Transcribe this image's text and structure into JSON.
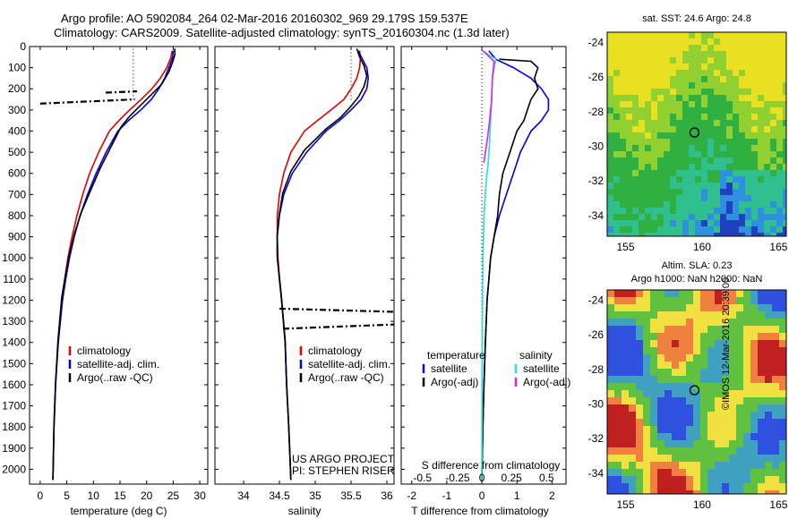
{
  "header": {
    "line1": "Argo profile: AO 5902084_264 02-Mar-2016 20160302_969 29.179S 159.537E",
    "line2": "Climatology: CARS2009. Satellite-adjusted climatology: synTS_20160304.nc (1.3d later)"
  },
  "colors": {
    "climatology": "#e00000",
    "satellite": "#0000e0",
    "argo": "#000000",
    "sat_salinity": "#20e0e0",
    "argo_salinity": "#e020e0"
  },
  "chart_data": [
    {
      "type": "line",
      "xlabel": "temperature (deg C)",
      "ylabel": "",
      "xlim": [
        -2,
        31.5
      ],
      "ylim": [
        2070,
        0
      ],
      "xticks": [
        0,
        5,
        10,
        15,
        20,
        25,
        30
      ],
      "yticks": [
        0,
        100,
        200,
        300,
        400,
        500,
        600,
        700,
        800,
        900,
        1000,
        1100,
        1200,
        1300,
        1400,
        1500,
        1600,
        1700,
        1800,
        1900,
        2000
      ],
      "legend": [
        "climatology",
        "satellite-adj. clim.",
        "Argo(..raw -QC)"
      ],
      "legend_position": "lower-center",
      "series": [
        {
          "name": "climatology",
          "x": [
            24.8,
            24.6,
            23.8,
            22.6,
            21.0,
            19.0,
            16.8,
            14.8,
            13.0,
            11.0,
            9.3,
            8.0,
            6.9,
            6.0,
            5.2,
            4.6,
            4.0,
            3.3,
            2.9,
            2.6,
            2.4
          ],
          "y": [
            20,
            50,
            100,
            150,
            200,
            250,
            300,
            350,
            400,
            500,
            600,
            700,
            800,
            900,
            1000,
            1100,
            1200,
            1400,
            1600,
            1800,
            2050
          ]
        },
        {
          "name": "satellite-adj. clim.",
          "x": [
            25.0,
            24.9,
            24.2,
            23.4,
            22.3,
            20.9,
            18.9,
            16.6,
            14.6,
            12.4,
            10.5,
            8.9,
            7.5,
            6.4,
            5.5,
            4.8,
            4.2,
            3.4,
            2.9,
            2.6,
            2.4
          ],
          "y": [
            20,
            50,
            100,
            150,
            200,
            250,
            300,
            350,
            400,
            500,
            600,
            700,
            800,
            900,
            1000,
            1100,
            1200,
            1400,
            1600,
            1800,
            2050
          ]
        },
        {
          "name": "Argo(..raw -QC)",
          "x": [
            25.3,
            25.3,
            24.8,
            24.2,
            22.8,
            20.8,
            18.8,
            16.8,
            15.2,
            13.2,
            11.2,
            9.5,
            7.8,
            6.5,
            5.5,
            4.8,
            4.1,
            3.4,
            2.9,
            2.6,
            2.4
          ],
          "y": [
            10,
            40,
            80,
            120,
            180,
            230,
            280,
            330,
            380,
            480,
            580,
            680,
            780,
            880,
            980,
            1080,
            1180,
            1380,
            1580,
            1780,
            2050
          ]
        }
      ],
      "markers": [
        {
          "name": "Argo(..raw -QC)",
          "x": [
            0,
            17.8
          ],
          "y": [
            270,
            250
          ]
        },
        {
          "name": "Argo(..raw -QC)",
          "x": [
            12.3,
            18.2
          ],
          "y": [
            218,
            212
          ]
        }
      ],
      "dotted_reference": {
        "x": [
          17.5,
          17.5
        ],
        "y": [
          10,
          260
        ]
      }
    },
    {
      "type": "line",
      "xlabel": "salinity",
      "xlim": [
        33.6,
        36.1
      ],
      "ylim": [
        2070,
        0
      ],
      "xticks": [
        34,
        34.5,
        35,
        35.5,
        36
      ],
      "legend": [
        "climatology",
        "satellite-adj. clim.",
        "Argo(..raw -QC)"
      ],
      "legend_position": "lower-right",
      "series": [
        {
          "name": "climatology",
          "x": [
            35.62,
            35.63,
            35.62,
            35.58,
            35.5,
            35.4,
            35.22,
            35.03,
            34.85,
            34.66,
            34.56,
            34.5,
            34.47,
            34.47,
            34.48,
            34.5,
            34.53,
            34.58,
            34.6,
            34.63,
            34.66
          ],
          "y": [
            20,
            60,
            100,
            150,
            200,
            250,
            300,
            350,
            400,
            500,
            600,
            700,
            800,
            900,
            1000,
            1100,
            1200,
            1400,
            1600,
            1800,
            2050
          ]
        },
        {
          "name": "satellite-adj. clim.",
          "x": [
            35.6,
            35.66,
            35.72,
            35.74,
            35.72,
            35.64,
            35.5,
            35.34,
            35.15,
            34.88,
            34.68,
            34.56,
            34.5,
            34.47,
            34.47,
            34.5,
            34.53,
            34.58,
            34.6,
            34.63,
            34.66
          ],
          "y": [
            20,
            60,
            100,
            150,
            200,
            250,
            300,
            350,
            400,
            500,
            600,
            700,
            800,
            900,
            1000,
            1100,
            1200,
            1400,
            1600,
            1800,
            2050
          ]
        },
        {
          "name": "Argo(..raw -QC)",
          "x": [
            35.58,
            35.62,
            35.68,
            35.72,
            35.68,
            35.6,
            35.48,
            35.34,
            35.15,
            34.85,
            34.66,
            34.55,
            34.5,
            34.47,
            34.47,
            34.5,
            34.53,
            34.58,
            34.6,
            34.63,
            34.66
          ],
          "y": [
            10,
            50,
            90,
            140,
            190,
            240,
            290,
            340,
            390,
            490,
            590,
            690,
            790,
            890,
            990,
            1090,
            1190,
            1390,
            1590,
            1790,
            2050
          ]
        }
      ],
      "markers": [
        {
          "name": "Argo(..raw -QC)",
          "x": [
            34.5,
            36.1
          ],
          "y": [
            1240,
            1255
          ]
        },
        {
          "name": "Argo(..raw -QC)",
          "x": [
            34.55,
            36.1
          ],
          "y": [
            1335,
            1315
          ]
        }
      ],
      "dotted_reference": {
        "x": [
          35.5,
          35.5
        ],
        "y": [
          10,
          260
        ]
      },
      "annotations": [
        "US ARGO PROJECT",
        "PI: STEPHEN RISER"
      ]
    },
    {
      "type": "line",
      "xlabel": "T difference from climatology",
      "xlabel_top": "S difference from climatology",
      "xlim": [
        -2.3,
        2.4
      ],
      "ylim": [
        2070,
        0
      ],
      "xticks": [
        -2,
        -1,
        0,
        1,
        2
      ],
      "xticks_top": [
        -0.5,
        -0.25,
        0,
        0.25,
        0.5
      ],
      "legend": [
        "temperature",
        "satellite",
        "Argo(-adj)",
        "salinity",
        "satellite",
        "Argo(-adj)"
      ],
      "legend_position": "lower-center",
      "series": [
        {
          "name": "satellite",
          "x": [
            0.2,
            0.4,
            0.9,
            1.4,
            1.7,
            1.9,
            1.9,
            1.7,
            1.4,
            1.1,
            0.9,
            0.7,
            0.5,
            0.35,
            0.25,
            0.2,
            0.15,
            0.1,
            0.06,
            0.03,
            0.0
          ],
          "y": [
            20,
            60,
            100,
            150,
            200,
            250,
            300,
            350,
            400,
            500,
            600,
            700,
            800,
            900,
            1000,
            1100,
            1200,
            1400,
            1600,
            1800,
            2050
          ]
        },
        {
          "name": "Argo(-adj)",
          "x": [
            0.5,
            1.4,
            1.6,
            1.5,
            1.6,
            1.4,
            1.3,
            1.2,
            1.0,
            0.8,
            0.6,
            0.5,
            0.45,
            0.35,
            0.25,
            0.2,
            0.15,
            0.1,
            0.06,
            0.03,
            0.0
          ],
          "y": [
            60,
            70,
            100,
            150,
            200,
            250,
            300,
            350,
            400,
            500,
            600,
            700,
            800,
            900,
            1000,
            1100,
            1200,
            1400,
            1600,
            1800,
            2050
          ]
        },
        {
          "name": "satellite",
          "x": [
            0.02,
            0.4,
            0.3,
            0.28,
            0.25,
            0.22,
            0.18,
            0.12,
            0.06,
            0.03,
            0.01,
            0.0
          ],
          "y": [
            20,
            60,
            150,
            250,
            350,
            450,
            550,
            650,
            800,
            1000,
            1400,
            2050
          ]
        },
        {
          "name": "Argo(-adj)",
          "x": [
            0.03,
            0.35,
            0.3,
            0.28,
            0.22,
            0.15,
            0.1,
            0.06
          ],
          "y": [
            20,
            70,
            150,
            250,
            350,
            450,
            500,
            550
          ]
        }
      ],
      "dotted_reference": {
        "x": [
          0,
          0
        ],
        "y": [
          0,
          2070
        ]
      }
    },
    {
      "type": "heatmap",
      "title": "sat. SST: 24.6  Argo: 24.8",
      "xlim": [
        153.8,
        165.5
      ],
      "ylim": [
        -35.2,
        -23.4
      ],
      "xticks": [
        155,
        160,
        165
      ],
      "yticks": [
        -24,
        -26,
        -28,
        -30,
        -32,
        -34
      ],
      "float_position": {
        "x": 159.5,
        "y": -29.2
      }
    },
    {
      "type": "heatmap",
      "title": "Altim. SLA: 0.23",
      "subtitle": "Argo h1000: NaN  h2000: NaN",
      "xlim": [
        153.8,
        165.5
      ],
      "ylim": [
        -35.2,
        -23.4
      ],
      "xticks": [
        155,
        160,
        165
      ],
      "yticks": [
        -24,
        -26,
        -28,
        -30,
        -32,
        -34
      ],
      "float_position": {
        "x": 159.5,
        "y": -29.2
      }
    }
  ],
  "credit": "©IMOS 12-Mar-2016 20:39:00"
}
